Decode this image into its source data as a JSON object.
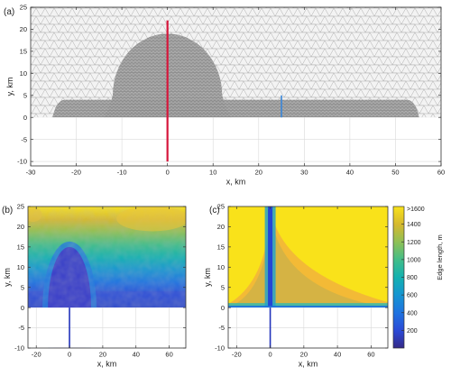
{
  "figure": {
    "panels": [
      {
        "id": "a",
        "label": "(a)"
      },
      {
        "id": "b",
        "label": "(b)"
      },
      {
        "id": "c",
        "label": "(c)"
      }
    ]
  },
  "colors": {
    "axis": "#333333",
    "grid": "#d9d9d9",
    "mesh_light": "#b9b9b9",
    "mesh_dark": "#6f6f6f",
    "red_line": "#d6163b",
    "blue_line": "#3a86d8",
    "vertical_line_bc": "#2233bb"
  },
  "chart_data": [
    {
      "panel": "a",
      "type": "heatmap",
      "title": "",
      "xlabel": "x, km",
      "ylabel": "y, km",
      "xlim": [
        -30,
        60
      ],
      "ylim": [
        -11,
        25
      ],
      "xticks": [
        -30,
        -20,
        -10,
        0,
        10,
        20,
        30,
        40,
        50,
        60
      ],
      "yticks": [
        -10,
        -5,
        0,
        5,
        10,
        15,
        20,
        25
      ],
      "grid": true,
      "description_hidden": false,
      "mesh_domain": {
        "x": [
          -30,
          60
        ],
        "y": [
          0,
          25
        ]
      },
      "refinement_regions": [
        {
          "shape": "dome",
          "x_center": 0,
          "half_width": 12,
          "height": 14
        },
        {
          "shape": "band",
          "x": [
            -24,
            54
          ],
          "height": 4
        }
      ],
      "lines": [
        {
          "color_key": "red_line",
          "x": 0,
          "y": [
            -10,
            22
          ]
        },
        {
          "color_key": "blue_line",
          "x": 25,
          "y": [
            0,
            5
          ]
        }
      ]
    },
    {
      "panel": "b",
      "type": "heatmap",
      "title": "",
      "xlabel": "x, km",
      "ylabel": "y, km",
      "xlim": [
        -25,
        70
      ],
      "ylim": [
        -10,
        25
      ],
      "xticks": [
        -20,
        0,
        20,
        40,
        60
      ],
      "yticks": [
        -10,
        -5,
        0,
        5,
        10,
        15,
        20,
        25
      ],
      "grid": true,
      "colormap": "parula",
      "color_range_m": [
        0,
        1600
      ],
      "field_domain": {
        "x": [
          -25,
          70
        ],
        "y": [
          0,
          25
        ]
      },
      "lines": [
        {
          "color_key": "vertical_line_bc",
          "x": 0,
          "y": [
            -10,
            0
          ]
        }
      ]
    },
    {
      "panel": "c",
      "type": "heatmap",
      "title": "",
      "xlabel": "x, km",
      "ylabel": "y, km",
      "xlim": [
        -25,
        70
      ],
      "ylim": [
        -10,
        25
      ],
      "xticks": [
        -20,
        0,
        20,
        40,
        60
      ],
      "yticks": [
        -10,
        -5,
        0,
        5,
        10,
        15,
        20,
        25
      ],
      "grid": true,
      "colormap": "parula",
      "color_range_m": [
        0,
        1600
      ],
      "field_domain": {
        "x": [
          -25,
          70
        ],
        "y": [
          0,
          25
        ]
      },
      "lines": [
        {
          "color_key": "vertical_line_bc",
          "x": 0,
          "y": [
            -10,
            0
          ]
        }
      ],
      "colorbar": {
        "label": "Edge length, m",
        "ticks": [
          200,
          400,
          600,
          800,
          1000,
          1200,
          1400
        ],
        "tick_labels": [
          "200",
          "400",
          "600",
          "800",
          "1000",
          "1200",
          "1400"
        ],
        "top_label": ">1600",
        "range": [
          0,
          1600
        ]
      }
    }
  ]
}
